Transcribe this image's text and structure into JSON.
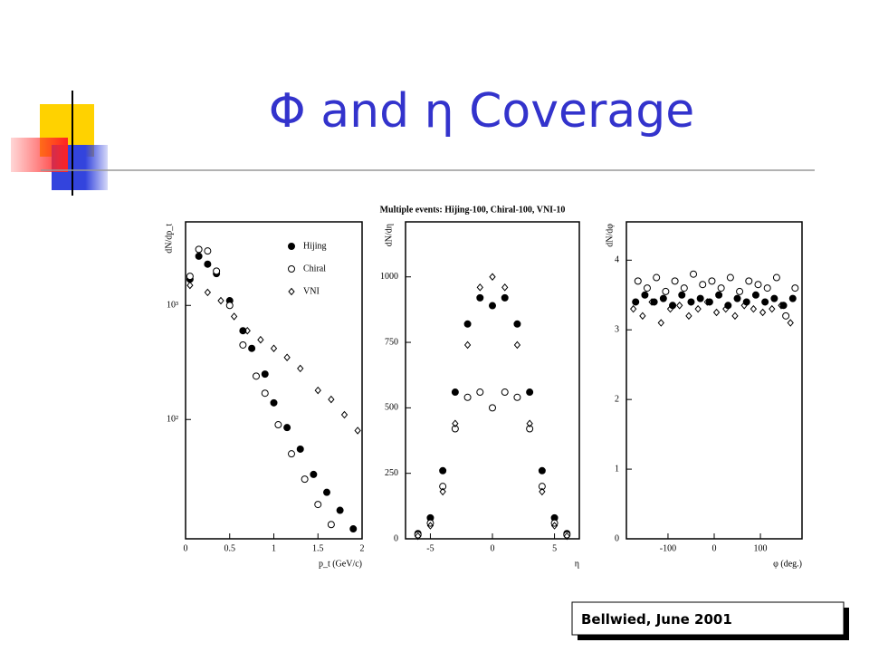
{
  "slide": {
    "title": "Φ and η Coverage",
    "footer": "Bellwied, June 2001"
  },
  "figure_title": "Multiple events: Hijing-100, Chiral-100, VNI-10",
  "chart_data": [
    {
      "type": "scatter",
      "x_label": "p_t (GeV/c)",
      "y_label": "dN/dp_t",
      "ylog": true,
      "xlim": [
        0,
        2
      ],
      "xticks": [
        0,
        {
          "value": 0.5,
          "label": "0.5"
        },
        1,
        {
          "value": 1.5,
          "label": "1.5"
        },
        2
      ],
      "ylim": [
        9,
        5400
      ],
      "yticks": [
        {
          "value": 1000,
          "label": "10³"
        },
        {
          "value": 100,
          "label": "10²"
        }
      ],
      "legend": "top-right",
      "series": [
        {
          "name": "Hijing",
          "marker": "filled-circle",
          "color": "#000000",
          "x": [
            0.05,
            0.15,
            0.25,
            0.35,
            0.5,
            0.65,
            0.75,
            0.9,
            1.0,
            1.15,
            1.3,
            1.45,
            1.6,
            1.75,
            1.9
          ],
          "values": [
            1700,
            2700,
            2300,
            1900,
            1100,
            600,
            420,
            250,
            140,
            85,
            55,
            33,
            23,
            16,
            11
          ]
        },
        {
          "name": "Chiral",
          "marker": "open-circle",
          "color": "#000000",
          "x": [
            0.05,
            0.15,
            0.25,
            0.35,
            0.5,
            0.65,
            0.8,
            0.9,
            1.05,
            1.2,
            1.35,
            1.5,
            1.65
          ],
          "values": [
            1800,
            3100,
            3000,
            2000,
            1000,
            450,
            240,
            170,
            90,
            50,
            30,
            18,
            12
          ]
        },
        {
          "name": "VNI",
          "marker": "open-diamond",
          "color": "#000000",
          "x": [
            0.05,
            0.25,
            0.4,
            0.55,
            0.7,
            0.85,
            1.0,
            1.15,
            1.3,
            1.5,
            1.65,
            1.8,
            1.95
          ],
          "values": [
            1500,
            1300,
            1100,
            800,
            600,
            500,
            420,
            350,
            280,
            180,
            150,
            110,
            80
          ]
        }
      ]
    },
    {
      "type": "scatter",
      "x_label": "η",
      "y_label": "dN/dη",
      "xlim": [
        -7,
        7
      ],
      "xticks": [
        -5,
        0,
        5
      ],
      "ylim": [
        0,
        1210
      ],
      "yticks": [
        0,
        250,
        500,
        750,
        1000
      ],
      "series": [
        {
          "marker": "filled-circle",
          "color": "#000000",
          "x": [
            -6,
            -5,
            -4,
            -3,
            -2,
            -1,
            0,
            1,
            2,
            3,
            4,
            5,
            6
          ],
          "values": [
            20,
            80,
            260,
            560,
            820,
            920,
            890,
            920,
            820,
            560,
            260,
            80,
            20
          ]
        },
        {
          "marker": "open-circle",
          "color": "#000000",
          "x": [
            -6,
            -5,
            -4,
            -3,
            -2,
            -1,
            0,
            1,
            2,
            3,
            4,
            5,
            6
          ],
          "values": [
            15,
            60,
            200,
            420,
            540,
            560,
            500,
            560,
            540,
            420,
            200,
            60,
            15
          ]
        },
        {
          "marker": "open-diamond",
          "color": "#000000",
          "x": [
            -6,
            -5,
            -4,
            -3,
            -2,
            -1,
            0,
            1,
            2,
            3,
            4,
            5,
            6
          ],
          "values": [
            10,
            50,
            180,
            440,
            740,
            960,
            1000,
            960,
            740,
            440,
            180,
            50,
            10
          ]
        }
      ]
    },
    {
      "type": "scatter",
      "x_label": "φ (deg.)",
      "y_label": "dN/dφ",
      "xlim": [
        -190,
        190
      ],
      "xticks": [
        -100,
        0,
        100
      ],
      "ylim": [
        0,
        4.55
      ],
      "yticks": [
        0,
        1,
        2,
        3,
        4
      ],
      "series": [
        {
          "marker": "filled-circle",
          "color": "#000000",
          "x": [
            -170,
            -150,
            -130,
            -110,
            -90,
            -70,
            -50,
            -30,
            -10,
            10,
            30,
            50,
            70,
            90,
            110,
            130,
            150,
            170
          ],
          "values": [
            3.4,
            3.5,
            3.4,
            3.45,
            3.35,
            3.5,
            3.4,
            3.45,
            3.4,
            3.5,
            3.35,
            3.45,
            3.4,
            3.5,
            3.4,
            3.45,
            3.35,
            3.45
          ]
        },
        {
          "marker": "open-circle",
          "color": "#000000",
          "x": [
            -165,
            -145,
            -125,
            -105,
            -85,
            -65,
            -45,
            -25,
            -5,
            15,
            35,
            55,
            75,
            95,
            115,
            135,
            155,
            175
          ],
          "values": [
            3.7,
            3.6,
            3.75,
            3.55,
            3.7,
            3.6,
            3.8,
            3.65,
            3.7,
            3.6,
            3.75,
            3.55,
            3.7,
            3.65,
            3.6,
            3.75,
            3.2,
            3.6
          ]
        },
        {
          "marker": "open-diamond",
          "color": "#000000",
          "x": [
            -175,
            -155,
            -135,
            -115,
            -95,
            -75,
            -55,
            -35,
            -15,
            5,
            25,
            45,
            65,
            85,
            105,
            125,
            145,
            165
          ],
          "values": [
            3.3,
            3.2,
            3.4,
            3.1,
            3.3,
            3.35,
            3.2,
            3.3,
            3.4,
            3.25,
            3.3,
            3.2,
            3.35,
            3.3,
            3.25,
            3.3,
            3.35,
            3.1
          ]
        }
      ]
    }
  ]
}
